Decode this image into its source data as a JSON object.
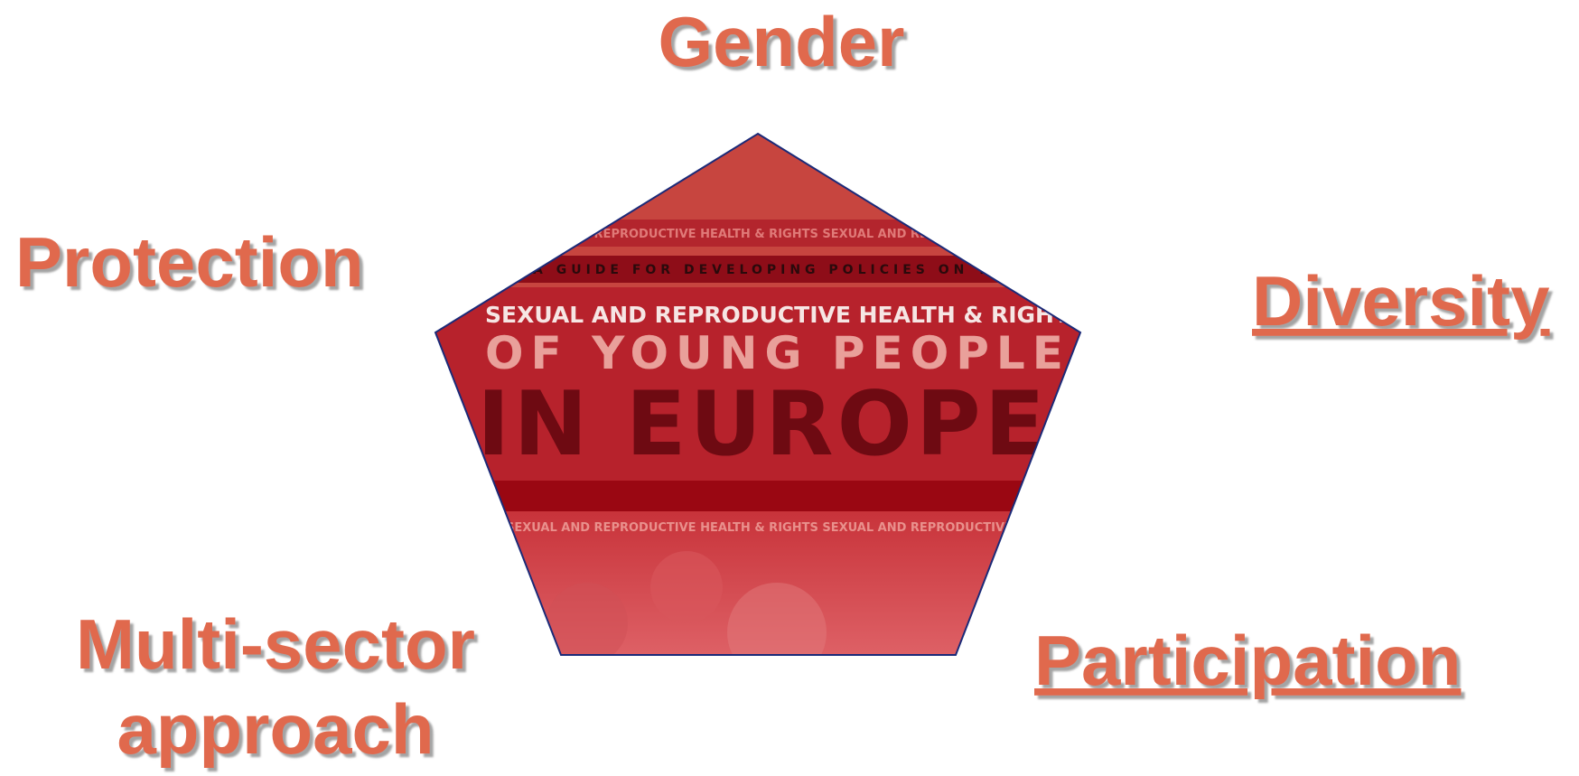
{
  "labels": {
    "top": "Gender",
    "left": "Protection",
    "right": "Diversity",
    "bottom_left": [
      "Multi-sector",
      "approach"
    ],
    "bottom_right": "Participation"
  },
  "cover": {
    "banner": "SEXUAL AND REPRODUCTIVE HEALTH & RIGHTS  SEXUAL AND REPRODUCTIVE HEALTH & RIGHTS",
    "guide": "A GUIDE FOR DEVELOPING POLICIES ON THE",
    "heading": "SEXUAL AND REPRODUCTIVE HEALTH & RIGHTS",
    "line2": "OF YOUNG PEOPLE",
    "line3": "IN EUROPE"
  }
}
